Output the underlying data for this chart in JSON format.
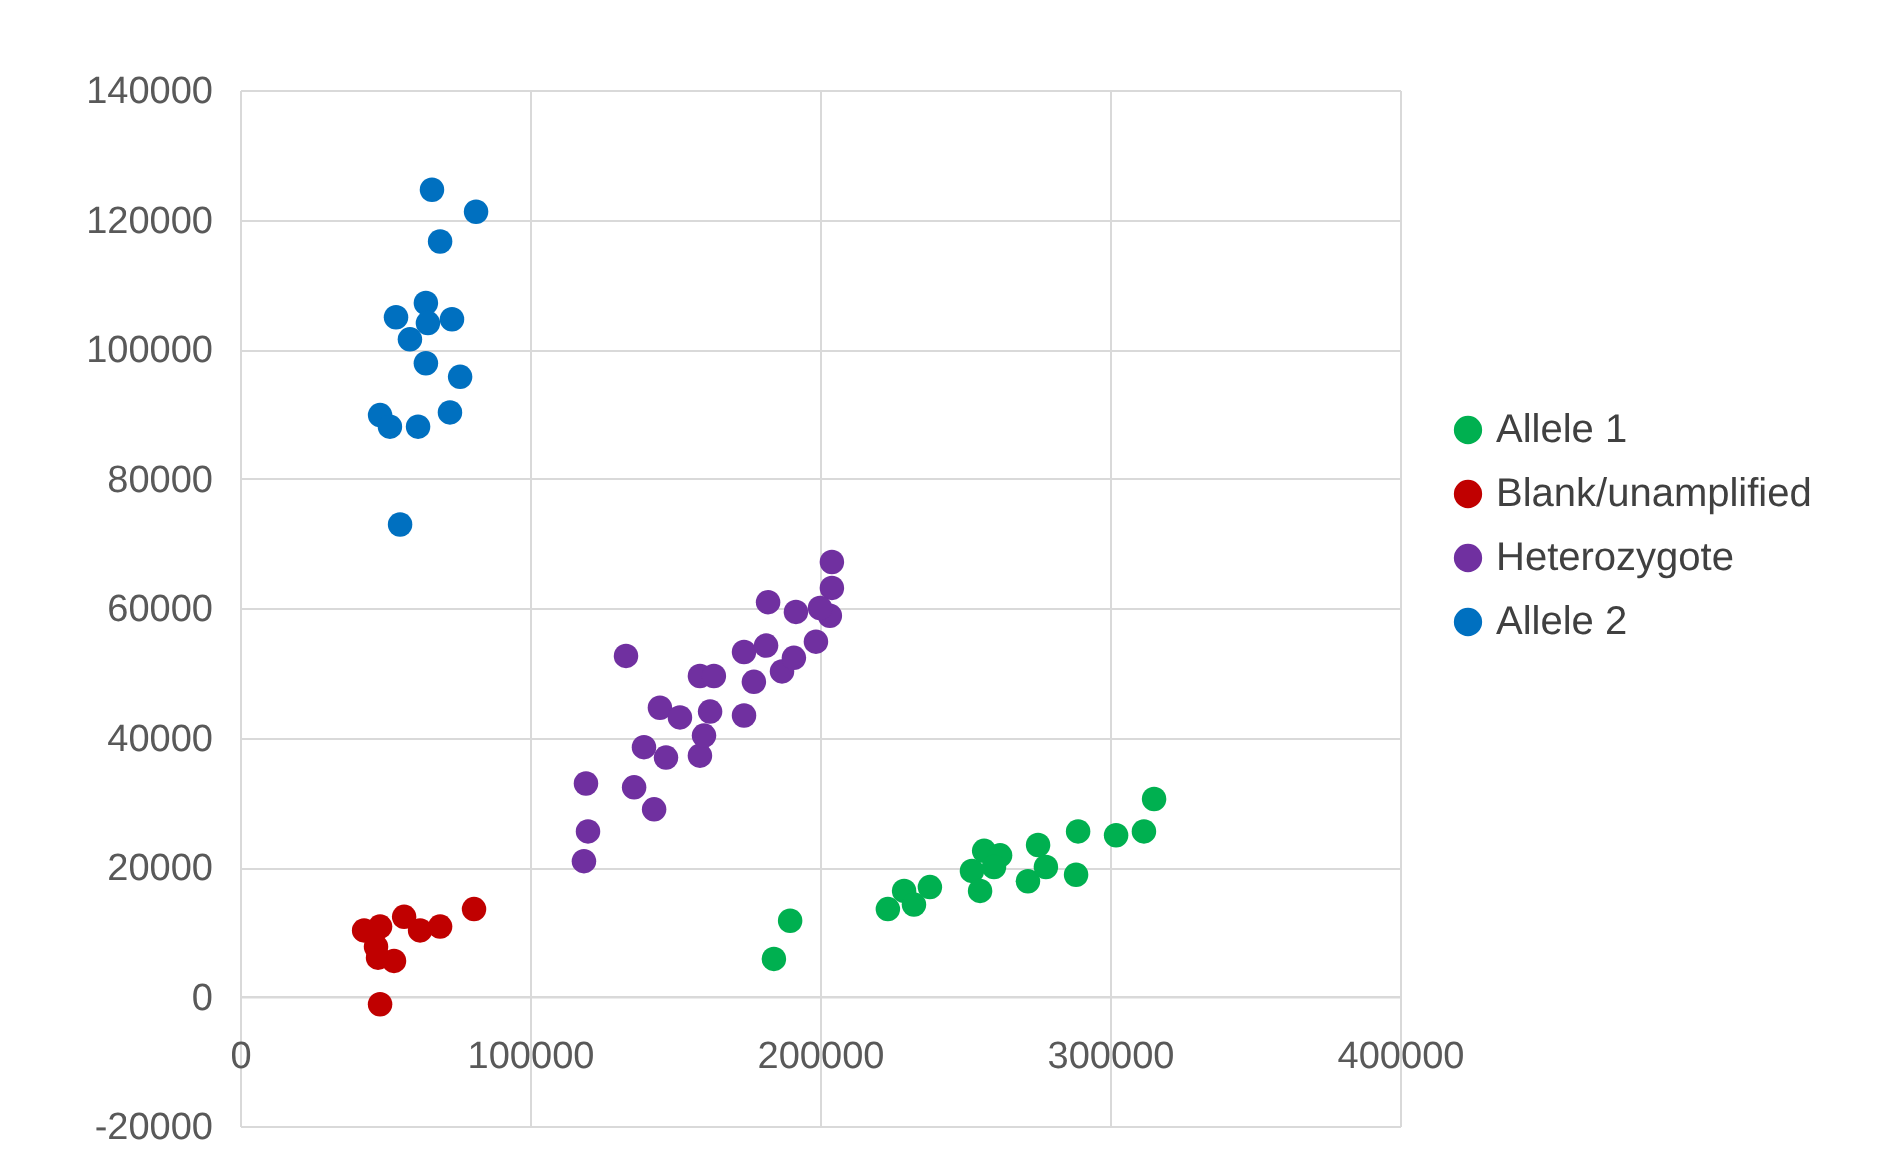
{
  "chart_data": {
    "type": "scatter",
    "xlim": [
      0,
      400000
    ],
    "ylim": [
      -20000,
      140000
    ],
    "xticks": [
      0,
      100000,
      200000,
      300000,
      400000
    ],
    "yticks": [
      -20000,
      0,
      20000,
      40000,
      60000,
      80000,
      100000,
      120000,
      140000
    ],
    "grid": true,
    "legend": "right",
    "marker": "circle",
    "series": [
      {
        "name": "Allele 1",
        "color": "#00b050",
        "x": [
          184100,
          189700,
          223400,
          229000,
          232400,
          237900,
          252400,
          255200,
          256600,
          262100,
          260000,
          271700,
          275200,
          277900,
          288300,
          289000,
          302100,
          311700,
          315200
        ],
        "values": [
          5800,
          11700,
          13500,
          16300,
          14200,
          16900,
          19400,
          16300,
          22500,
          21800,
          20000,
          17800,
          23400,
          20000,
          18800,
          25500,
          24900,
          25500,
          30500
        ]
      },
      {
        "name": "Blank/unamplified",
        "color": "#c00000",
        "x": [
          42800,
          48300,
          56600,
          62100,
          69000,
          80700,
          46900,
          53100,
          47600,
          48300
        ],
        "values": [
          10200,
          10800,
          12300,
          10200,
          10800,
          13500,
          7700,
          5500,
          6000,
          -1200
        ]
      },
      {
        "name": "Heterozygote",
        "color": "#7030a0",
        "x": [
          118600,
          120000,
          119300,
          133100,
          142800,
          135900,
          139300,
          144800,
          146900,
          151700,
          158600,
          160000,
          158600,
          163400,
          162100,
          173800,
          177200,
          173800,
          181400,
          182100,
          186900,
          191000,
          191700,
          198600,
          203400,
          204100,
          204100,
          200000
        ],
        "values": [
          20900,
          25500,
          32900,
          52600,
          28900,
          32300,
          38500,
          44600,
          36900,
          43100,
          37200,
          40300,
          49500,
          49500,
          44000,
          43400,
          48600,
          53200,
          54200,
          60900,
          50200,
          52300,
          59400,
          54800,
          58800,
          63100,
          67100,
          60000
        ]
      },
      {
        "name": "Allele 2",
        "color": "#0070c0",
        "x": [
          66200,
          81400,
          69000,
          53800,
          64100,
          73100,
          64800,
          58600,
          64100,
          75900,
          48300,
          51700,
          61400,
          72400,
          55200
        ],
        "values": [
          124600,
          121200,
          116600,
          104900,
          107100,
          104600,
          104000,
          101500,
          97800,
          95700,
          89800,
          88000,
          88000,
          90200,
          72900
        ]
      }
    ]
  }
}
